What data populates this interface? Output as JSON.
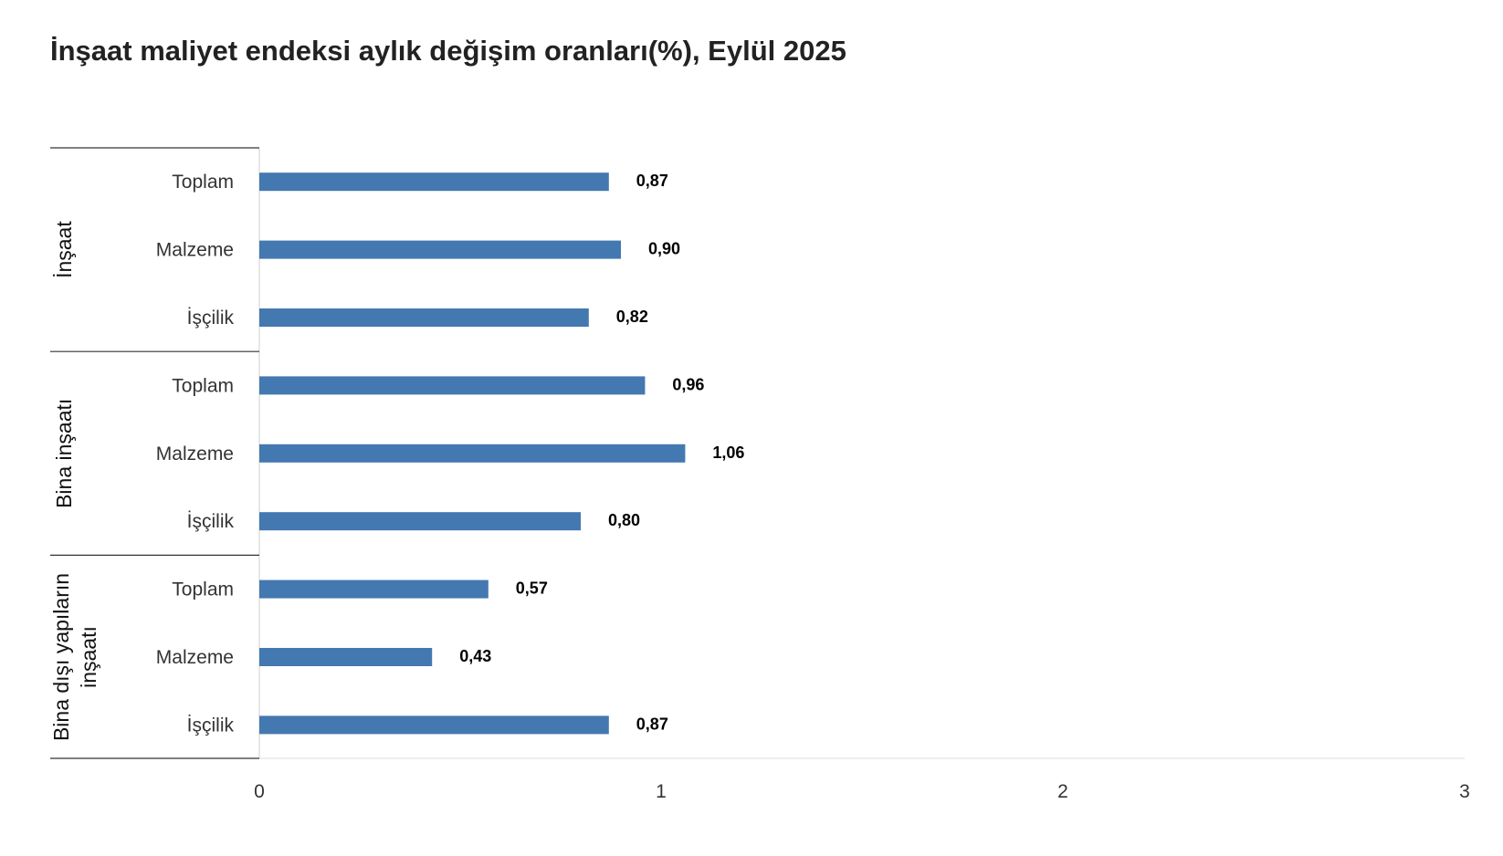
{
  "chart_data": {
    "type": "bar",
    "orientation": "horizontal",
    "title": "İnşaat maliyet endeksi aylık değişim oranları(%), Eylül 2025",
    "xlim": [
      0,
      3
    ],
    "x_ticks": [
      "0",
      "1",
      "2",
      "3"
    ],
    "grid": false,
    "color": "#4478B0",
    "groups": [
      {
        "name": "İnşaat",
        "name_lines": [
          "İnşaat"
        ],
        "categories": [
          "Toplam",
          "Malzeme",
          "İşçilik"
        ],
        "values": [
          0.87,
          0.9,
          0.82
        ],
        "value_labels": [
          "0,87",
          "0,90",
          "0,82"
        ]
      },
      {
        "name": "Bina inşaatı",
        "name_lines": [
          "Bina inşaatı"
        ],
        "categories": [
          "Toplam",
          "Malzeme",
          "İşçilik"
        ],
        "values": [
          0.96,
          1.06,
          0.8
        ],
        "value_labels": [
          "0,96",
          "1,06",
          "0,80"
        ]
      },
      {
        "name": "Bina dışı yapıların inşaatı",
        "name_lines": [
          "Bina dışı yapıların",
          "inşaatı"
        ],
        "categories": [
          "Toplam",
          "Malzeme",
          "İşçilik"
        ],
        "values": [
          0.57,
          0.43,
          0.87
        ],
        "value_labels": [
          "0,57",
          "0,43",
          "0,87"
        ]
      }
    ]
  }
}
